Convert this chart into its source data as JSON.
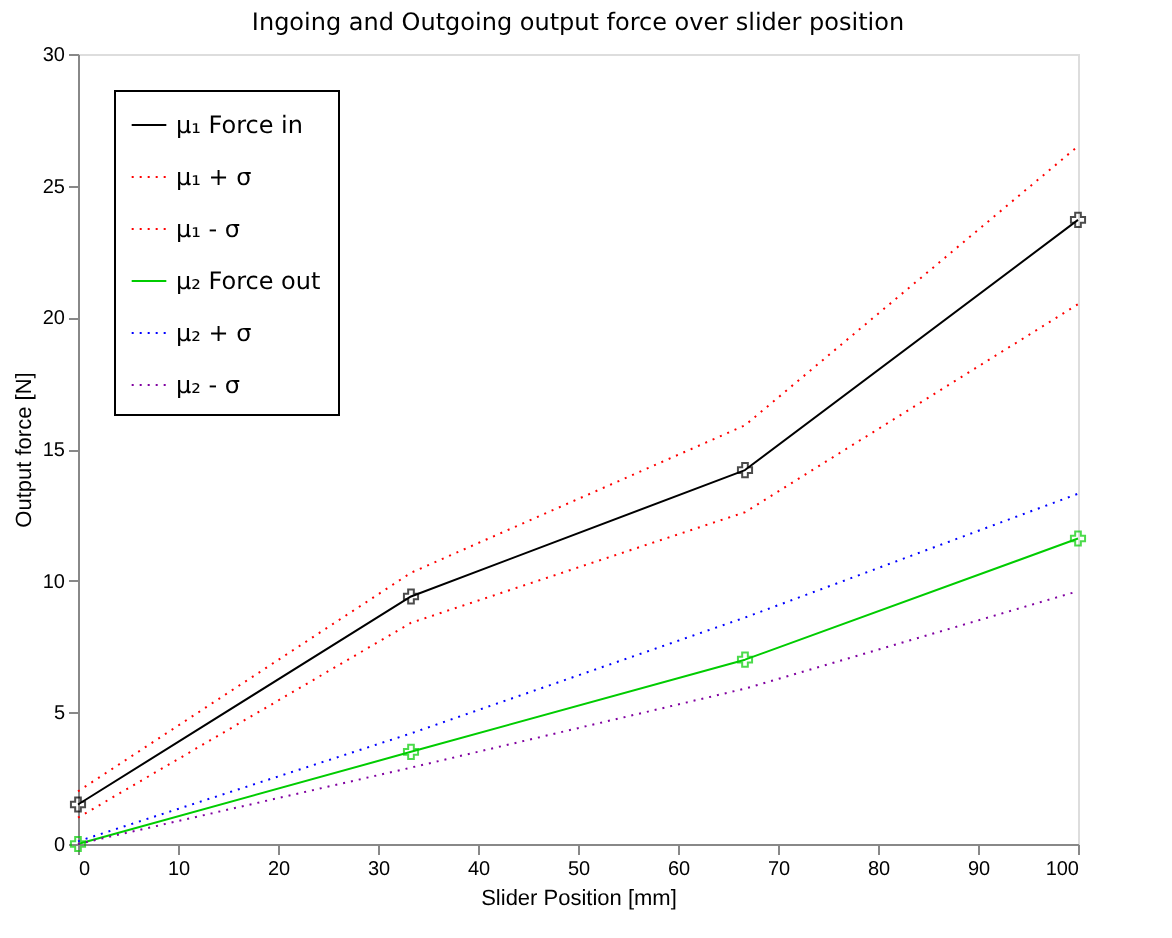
{
  "chart_data": {
    "type": "line",
    "title": "Ingoing and Outgoing output force over slider position",
    "xlabel": "Slider Position [mm]",
    "ylabel": "Output force [N]",
    "xlim": [
      0,
      100
    ],
    "xticks": [
      0,
      10,
      20,
      30,
      40,
      50,
      60,
      70,
      80,
      90,
      100
    ],
    "ylim": [
      0,
      30
    ],
    "yticks": [
      0,
      5,
      10,
      15,
      20,
      25,
      30
    ],
    "grid": false,
    "legend": "top left",
    "series": [
      {
        "name": "μ₁ Force in",
        "color": "#000000",
        "x": [
          0,
          33.3,
          66.7,
          100
        ],
        "values": [
          1.5,
          9.4,
          14.2,
          23.7
        ],
        "marker": "cross",
        "line_style": "solid"
      },
      {
        "name": "μ₁ + σ",
        "color": "#ff0000",
        "x": [
          0,
          33.3,
          66.7,
          100
        ],
        "values": [
          2.0,
          10.3,
          15.9,
          26.5
        ],
        "marker": "none",
        "line_style": "dotted"
      },
      {
        "name": "μ₁ - σ",
        "color": "#ff0000",
        "x": [
          0,
          33.3,
          66.7,
          100
        ],
        "values": [
          1.0,
          8.4,
          12.6,
          20.5
        ],
        "marker": "none",
        "line_style": "dotted"
      },
      {
        "name": "μ₂ Force out",
        "color": "#00cc00",
        "x": [
          0,
          33.3,
          66.7,
          100
        ],
        "values": [
          0,
          3.5,
          7.0,
          11.6
        ],
        "marker": "cross",
        "line_style": "solid"
      },
      {
        "name": "μ₂ + σ",
        "color": "#0000ff",
        "x": [
          0,
          33.3,
          66.7,
          100
        ],
        "values": [
          0.1,
          4.2,
          8.6,
          13.3
        ],
        "marker": "none",
        "line_style": "dotted"
      },
      {
        "name": "μ₂ - σ",
        "color": "#8000a0",
        "x": [
          0,
          33.3,
          66.7,
          100
        ],
        "values": [
          0,
          2.9,
          5.9,
          9.6
        ],
        "marker": "none",
        "line_style": "dotted"
      }
    ]
  }
}
